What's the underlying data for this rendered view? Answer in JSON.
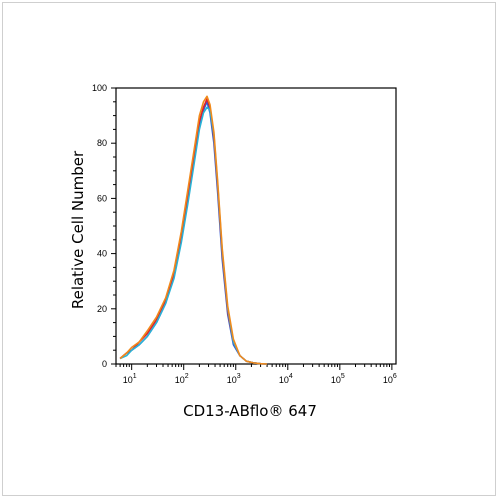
{
  "chart_data": {
    "type": "line",
    "xlabel": "CD13-ABflo® 647",
    "ylabel": "Relative Cell Number",
    "xscale": "log",
    "xlim": [
      5,
      1200000
    ],
    "ylim": [
      0,
      100
    ],
    "grid": false,
    "x_ticks": [
      {
        "value": 10,
        "base": "10",
        "exp": "1"
      },
      {
        "value": 100,
        "base": "10",
        "exp": "2"
      },
      {
        "value": 1000,
        "base": "10",
        "exp": "3"
      },
      {
        "value": 10000,
        "base": "10",
        "exp": "4"
      },
      {
        "value": 100000,
        "base": "10",
        "exp": "5"
      },
      {
        "value": 1000000,
        "base": "10",
        "exp": "6"
      }
    ],
    "y_ticks": [
      0,
      20,
      40,
      60,
      80,
      100
    ],
    "series": [
      {
        "color": "#2a5ed8",
        "x": [
          6,
          8,
          10,
          14,
          20,
          30,
          45,
          65,
          90,
          120,
          160,
          200,
          240,
          280,
          320,
          380,
          450,
          550,
          700,
          900,
          1200,
          1600,
          2200,
          3000,
          4000
        ],
        "y": [
          2,
          4,
          5,
          7,
          10,
          15,
          22,
          32,
          45,
          60,
          75,
          86,
          92,
          95,
          91,
          80,
          62,
          38,
          18,
          7,
          3,
          1,
          0.4,
          0.1,
          0
        ]
      },
      {
        "color": "#e0202a",
        "x": [
          6,
          8,
          10,
          14,
          20,
          30,
          45,
          65,
          90,
          120,
          160,
          200,
          240,
          280,
          320,
          380,
          450,
          550,
          700,
          900,
          1200,
          1600,
          2200,
          3000,
          4000
        ],
        "y": [
          2,
          4,
          5,
          8,
          11,
          16,
          23,
          33,
          46,
          61,
          76,
          88,
          93,
          96,
          93,
          82,
          64,
          40,
          19,
          8,
          3,
          1,
          0.4,
          0.1,
          0
        ]
      },
      {
        "color": "#29b3d6",
        "x": [
          6,
          8,
          10,
          14,
          20,
          30,
          45,
          65,
          90,
          120,
          160,
          200,
          240,
          280,
          320,
          380,
          450,
          550,
          700,
          900,
          1200,
          1600,
          2200,
          3000,
          4000
        ],
        "y": [
          2,
          3,
          5,
          7,
          10,
          15,
          22,
          31,
          44,
          58,
          73,
          85,
          91,
          93,
          92,
          83,
          65,
          41,
          20,
          8,
          3,
          1,
          0.4,
          0.1,
          0
        ]
      },
      {
        "color": "#f08a1c",
        "x": [
          6,
          8,
          10,
          14,
          20,
          30,
          45,
          65,
          90,
          120,
          160,
          200,
          240,
          280,
          320,
          380,
          450,
          550,
          700,
          900,
          1200,
          1600,
          2200,
          3000,
          4000
        ],
        "y": [
          2,
          4,
          6,
          8,
          12,
          17,
          24,
          34,
          48,
          63,
          78,
          90,
          95,
          97,
          94,
          84,
          66,
          42,
          21,
          9,
          3,
          1,
          0.4,
          0.1,
          0
        ]
      }
    ]
  }
}
